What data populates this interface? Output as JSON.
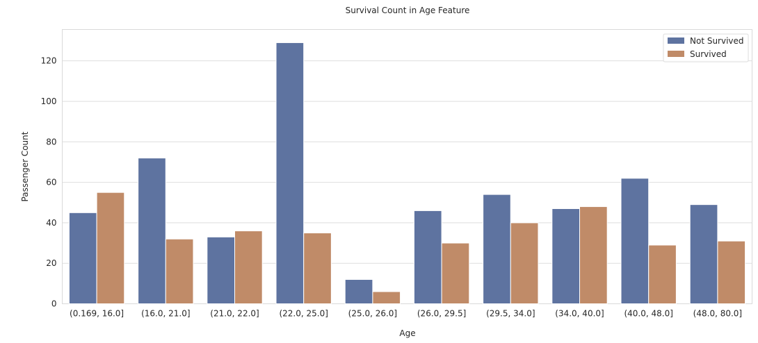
{
  "chart_data": {
    "type": "bar",
    "title": "Survival Count in Age Feature",
    "xlabel": "Age",
    "ylabel": "Passenger Count",
    "categories": [
      "(0.169, 16.0]",
      "(16.0, 21.0]",
      "(21.0, 22.0]",
      "(22.0, 25.0]",
      "(25.0, 26.0]",
      "(26.0, 29.5]",
      "(29.5, 34.0]",
      "(34.0, 40.0]",
      "(40.0, 48.0]",
      "(48.0, 80.0]"
    ],
    "series": [
      {
        "name": "Not Survived",
        "color": "#5e73a0",
        "values": [
          45,
          72,
          33,
          129,
          12,
          46,
          54,
          47,
          62,
          49
        ]
      },
      {
        "name": "Survived",
        "color": "#c08b68",
        "values": [
          55,
          32,
          36,
          35,
          6,
          30,
          40,
          48,
          29,
          31
        ]
      }
    ],
    "yticks": [
      0,
      20,
      40,
      60,
      80,
      100,
      120
    ],
    "ylim": [
      0,
      135.5
    ],
    "grid": true,
    "legend_position": "top-right"
  }
}
